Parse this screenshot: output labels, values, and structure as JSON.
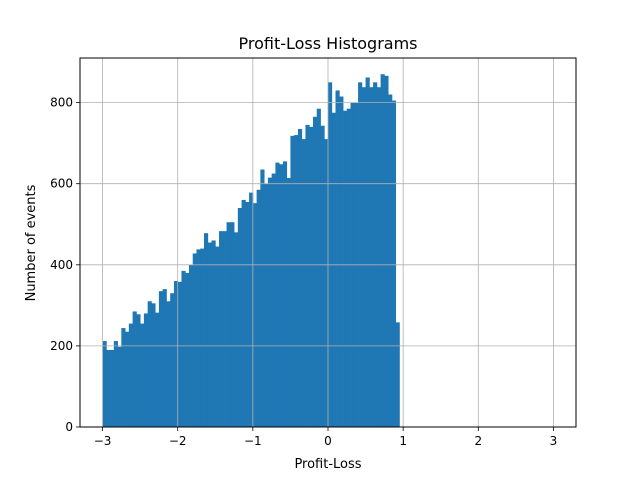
{
  "chart_data": {
    "type": "bar",
    "title": "Profit-Loss Histograms",
    "xlabel": "Profit-Loss",
    "ylabel": "Number of events",
    "xlim": [
      -3.3,
      3.3
    ],
    "ylim": [
      0,
      910
    ],
    "xticks": [
      -3,
      -2,
      -1,
      0,
      1,
      2,
      3
    ],
    "xtick_labels": [
      "−3",
      "−2",
      "−1",
      "0",
      "1",
      "2",
      "3"
    ],
    "yticks": [
      0,
      200,
      400,
      600,
      800
    ],
    "ytick_labels": [
      "0",
      "200",
      "400",
      "600",
      "800"
    ],
    "grid": true,
    "bar_color": "#1f77b4",
    "grid_color": "#b0b0b0",
    "bin_start": -3,
    "bin_width": 0.05,
    "values": [
      212,
      190,
      190,
      212,
      198,
      244,
      235,
      255,
      285,
      278,
      255,
      280,
      310,
      305,
      282,
      335,
      340,
      310,
      330,
      360,
      358,
      385,
      380,
      400,
      428,
      438,
      440,
      478,
      455,
      460,
      445,
      483,
      483,
      505,
      505,
      480,
      540,
      560,
      555,
      578,
      552,
      585,
      635,
      600,
      615,
      625,
      652,
      648,
      655,
      614,
      718,
      720,
      735,
      710,
      745,
      740,
      765,
      785,
      743,
      710,
      850,
      775,
      830,
      815,
      780,
      785,
      800,
      800,
      850,
      838,
      862,
      838,
      850,
      838,
      870,
      866,
      820,
      805,
      258
    ]
  }
}
